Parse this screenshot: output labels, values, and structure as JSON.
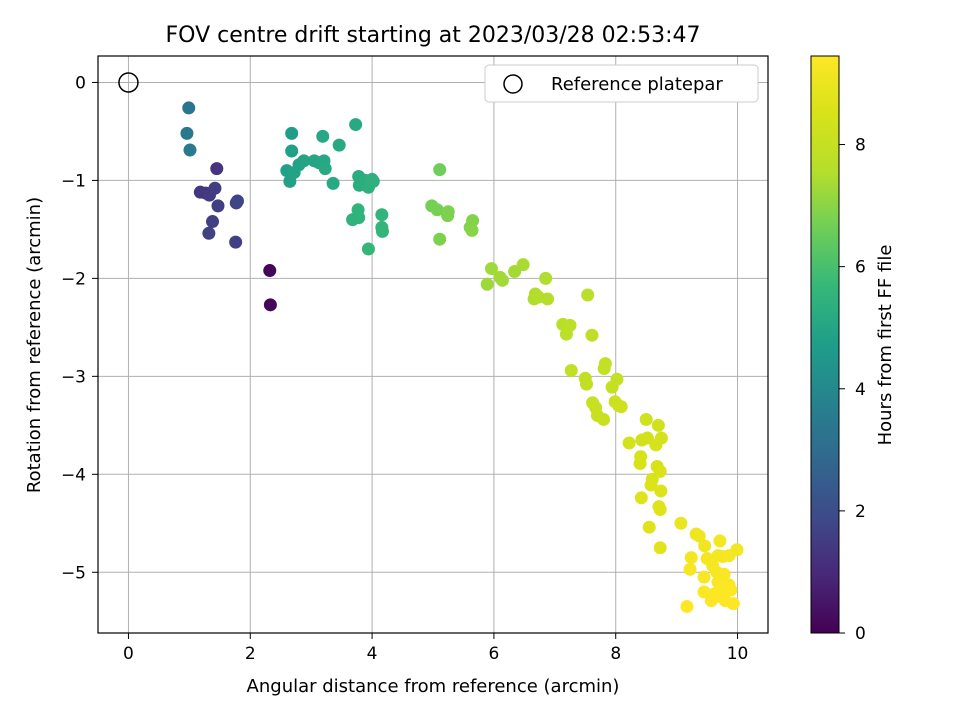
{
  "chart_data": {
    "type": "scatter",
    "title": "FOV centre drift starting at 2023/03/28 02:53:47",
    "xlabel": "Angular distance from reference (arcmin)",
    "ylabel": "Rotation from reference (arcmin)",
    "xlim": [
      -0.5,
      10.5
    ],
    "ylim": [
      -5.62,
      0.27
    ],
    "xticks": [
      0,
      2,
      4,
      6,
      8,
      10
    ],
    "yticks": [
      0,
      -1,
      -2,
      -3,
      -4,
      -5
    ],
    "grid": true,
    "legend": {
      "placement": "top-right",
      "entries": [
        "Reference platepar"
      ]
    },
    "reference_point": {
      "name": "Reference platepar",
      "x": 0,
      "y": 0
    },
    "colorbar": {
      "label": "Hours from first FF file",
      "min": 0,
      "max": 9.45,
      "ticks": [
        0,
        2,
        4,
        6,
        8
      ],
      "colormap": "viridis"
    },
    "points": [
      {
        "x": 2.32,
        "y": -1.92,
        "h": 0.1
      },
      {
        "x": 2.33,
        "y": -2.27,
        "h": 0.15
      },
      {
        "x": 1.45,
        "y": -0.88,
        "h": 1.3
      },
      {
        "x": 1.18,
        "y": -1.12,
        "h": 1.35
      },
      {
        "x": 1.27,
        "y": -1.13,
        "h": 1.4
      },
      {
        "x": 1.33,
        "y": -1.15,
        "h": 1.45
      },
      {
        "x": 1.42,
        "y": -1.08,
        "h": 1.5
      },
      {
        "x": 1.47,
        "y": -1.26,
        "h": 1.55
      },
      {
        "x": 1.38,
        "y": -1.42,
        "h": 1.6
      },
      {
        "x": 1.32,
        "y": -1.54,
        "h": 1.65
      },
      {
        "x": 1.77,
        "y": -1.23,
        "h": 1.7
      },
      {
        "x": 1.79,
        "y": -1.21,
        "h": 1.75
      },
      {
        "x": 1.76,
        "y": -1.63,
        "h": 1.6
      },
      {
        "x": 0.99,
        "y": -0.26,
        "h": 3.3
      },
      {
        "x": 0.96,
        "y": -0.52,
        "h": 3.4
      },
      {
        "x": 1.01,
        "y": -0.69,
        "h": 3.5
      },
      {
        "x": 2.68,
        "y": -0.52,
        "h": 4.7
      },
      {
        "x": 2.68,
        "y": -0.7,
        "h": 4.75
      },
      {
        "x": 2.6,
        "y": -0.9,
        "h": 4.8
      },
      {
        "x": 2.65,
        "y": -1.01,
        "h": 4.85
      },
      {
        "x": 2.72,
        "y": -0.92,
        "h": 4.9
      },
      {
        "x": 2.8,
        "y": -0.84,
        "h": 4.9
      },
      {
        "x": 2.88,
        "y": -0.8,
        "h": 4.95
      },
      {
        "x": 3.05,
        "y": -0.8,
        "h": 5.0
      },
      {
        "x": 3.13,
        "y": -0.82,
        "h": 5.0
      },
      {
        "x": 3.21,
        "y": -0.8,
        "h": 5.05
      },
      {
        "x": 3.19,
        "y": -0.55,
        "h": 5.05
      },
      {
        "x": 3.23,
        "y": -0.88,
        "h": 5.1
      },
      {
        "x": 3.36,
        "y": -1.03,
        "h": 5.1
      },
      {
        "x": 3.46,
        "y": -0.64,
        "h": 5.15
      },
      {
        "x": 3.73,
        "y": -0.43,
        "h": 5.15
      },
      {
        "x": 3.78,
        "y": -0.96,
        "h": 5.2
      },
      {
        "x": 3.79,
        "y": -1.05,
        "h": 5.3
      },
      {
        "x": 3.89,
        "y": -1.0,
        "h": 5.3
      },
      {
        "x": 3.94,
        "y": -1.07,
        "h": 5.35
      },
      {
        "x": 4.02,
        "y": -1.01,
        "h": 5.4
      },
      {
        "x": 4.0,
        "y": -0.99,
        "h": 5.4
      },
      {
        "x": 3.68,
        "y": -1.4,
        "h": 5.45
      },
      {
        "x": 3.78,
        "y": -1.38,
        "h": 5.5
      },
      {
        "x": 3.77,
        "y": -1.3,
        "h": 5.5
      },
      {
        "x": 4.16,
        "y": -1.35,
        "h": 5.55
      },
      {
        "x": 4.16,
        "y": -1.48,
        "h": 5.6
      },
      {
        "x": 4.17,
        "y": -1.52,
        "h": 5.6
      },
      {
        "x": 3.94,
        "y": -1.7,
        "h": 5.65
      },
      {
        "x": 5.11,
        "y": -0.89,
        "h": 6.6
      },
      {
        "x": 4.98,
        "y": -1.26,
        "h": 6.7
      },
      {
        "x": 5.07,
        "y": -1.3,
        "h": 6.75
      },
      {
        "x": 5.25,
        "y": -1.32,
        "h": 6.8
      },
      {
        "x": 5.24,
        "y": -1.36,
        "h": 6.8
      },
      {
        "x": 5.65,
        "y": -1.41,
        "h": 6.9
      },
      {
        "x": 5.61,
        "y": -1.48,
        "h": 6.9
      },
      {
        "x": 5.64,
        "y": -1.51,
        "h": 6.95
      },
      {
        "x": 5.11,
        "y": -1.6,
        "h": 6.8
      },
      {
        "x": 6.48,
        "y": -1.86,
        "h": 7.4
      },
      {
        "x": 6.34,
        "y": -1.93,
        "h": 7.35
      },
      {
        "x": 5.96,
        "y": -1.9,
        "h": 7.3
      },
      {
        "x": 6.1,
        "y": -1.99,
        "h": 7.3
      },
      {
        "x": 6.14,
        "y": -2.02,
        "h": 7.3
      },
      {
        "x": 5.89,
        "y": -2.06,
        "h": 7.25
      },
      {
        "x": 6.85,
        "y": -2.0,
        "h": 7.5
      },
      {
        "x": 6.68,
        "y": -2.16,
        "h": 7.5
      },
      {
        "x": 6.66,
        "y": -2.21,
        "h": 7.5
      },
      {
        "x": 6.73,
        "y": -2.19,
        "h": 7.55
      },
      {
        "x": 6.88,
        "y": -2.21,
        "h": 7.55
      },
      {
        "x": 7.54,
        "y": -2.17,
        "h": 7.7
      },
      {
        "x": 7.13,
        "y": -2.47,
        "h": 7.7
      },
      {
        "x": 7.25,
        "y": -2.48,
        "h": 7.75
      },
      {
        "x": 7.19,
        "y": -2.57,
        "h": 7.75
      },
      {
        "x": 7.61,
        "y": -2.58,
        "h": 7.8
      },
      {
        "x": 7.27,
        "y": -2.94,
        "h": 7.85
      },
      {
        "x": 7.5,
        "y": -3.02,
        "h": 7.9
      },
      {
        "x": 7.52,
        "y": -3.08,
        "h": 7.9
      },
      {
        "x": 7.83,
        "y": -2.87,
        "h": 7.95
      },
      {
        "x": 7.81,
        "y": -2.92,
        "h": 7.95
      },
      {
        "x": 8.02,
        "y": -3.03,
        "h": 8.0
      },
      {
        "x": 7.94,
        "y": -3.11,
        "h": 8.0
      },
      {
        "x": 7.62,
        "y": -3.27,
        "h": 8.05
      },
      {
        "x": 7.67,
        "y": -3.32,
        "h": 8.05
      },
      {
        "x": 7.7,
        "y": -3.4,
        "h": 8.1
      },
      {
        "x": 7.8,
        "y": -3.44,
        "h": 8.1
      },
      {
        "x": 7.99,
        "y": -3.26,
        "h": 8.15
      },
      {
        "x": 8.05,
        "y": -3.3,
        "h": 8.15
      },
      {
        "x": 8.09,
        "y": -3.31,
        "h": 8.2
      },
      {
        "x": 8.5,
        "y": -3.44,
        "h": 8.3
      },
      {
        "x": 8.7,
        "y": -3.5,
        "h": 8.3
      },
      {
        "x": 8.52,
        "y": -3.63,
        "h": 8.35
      },
      {
        "x": 8.43,
        "y": -3.65,
        "h": 8.35
      },
      {
        "x": 8.22,
        "y": -3.68,
        "h": 8.4
      },
      {
        "x": 8.75,
        "y": -3.63,
        "h": 8.4
      },
      {
        "x": 8.66,
        "y": -3.7,
        "h": 8.45
      },
      {
        "x": 8.41,
        "y": -3.82,
        "h": 8.45
      },
      {
        "x": 8.4,
        "y": -3.89,
        "h": 8.5
      },
      {
        "x": 8.68,
        "y": -3.92,
        "h": 8.5
      },
      {
        "x": 8.73,
        "y": -3.97,
        "h": 8.55
      },
      {
        "x": 8.6,
        "y": -4.05,
        "h": 8.55
      },
      {
        "x": 8.58,
        "y": -4.11,
        "h": 8.6
      },
      {
        "x": 8.74,
        "y": -4.17,
        "h": 8.6
      },
      {
        "x": 8.42,
        "y": -4.24,
        "h": 8.65
      },
      {
        "x": 8.71,
        "y": -4.33,
        "h": 8.65
      },
      {
        "x": 8.73,
        "y": -4.36,
        "h": 8.7
      },
      {
        "x": 8.55,
        "y": -4.54,
        "h": 8.7
      },
      {
        "x": 8.73,
        "y": -4.75,
        "h": 8.75
      },
      {
        "x": 9.07,
        "y": -4.5,
        "h": 9.0
      },
      {
        "x": 9.32,
        "y": -4.61,
        "h": 9.1
      },
      {
        "x": 9.37,
        "y": -4.63,
        "h": 9.1
      },
      {
        "x": 9.46,
        "y": -4.73,
        "h": 9.15
      },
      {
        "x": 9.71,
        "y": -4.68,
        "h": 9.2
      },
      {
        "x": 9.99,
        "y": -4.77,
        "h": 9.2
      },
      {
        "x": 9.24,
        "y": -4.85,
        "h": 9.2
      },
      {
        "x": 9.68,
        "y": -4.83,
        "h": 9.25
      },
      {
        "x": 9.76,
        "y": -4.84,
        "h": 9.25
      },
      {
        "x": 9.5,
        "y": -4.86,
        "h": 9.25
      },
      {
        "x": 9.86,
        "y": -4.83,
        "h": 9.3
      },
      {
        "x": 9.59,
        "y": -4.93,
        "h": 9.3
      },
      {
        "x": 9.22,
        "y": -4.97,
        "h": 9.3
      },
      {
        "x": 9.66,
        "y": -5.0,
        "h": 9.3
      },
      {
        "x": 9.78,
        "y": -5.02,
        "h": 9.35
      },
      {
        "x": 9.45,
        "y": -5.05,
        "h": 9.35
      },
      {
        "x": 9.68,
        "y": -5.1,
        "h": 9.35
      },
      {
        "x": 9.86,
        "y": -5.13,
        "h": 9.35
      },
      {
        "x": 9.76,
        "y": -5.15,
        "h": 9.4
      },
      {
        "x": 9.89,
        "y": -5.18,
        "h": 9.4
      },
      {
        "x": 9.45,
        "y": -5.2,
        "h": 9.4
      },
      {
        "x": 9.62,
        "y": -5.22,
        "h": 9.4
      },
      {
        "x": 9.72,
        "y": -5.25,
        "h": 9.4
      },
      {
        "x": 9.57,
        "y": -5.29,
        "h": 9.45
      },
      {
        "x": 9.8,
        "y": -5.29,
        "h": 9.45
      },
      {
        "x": 9.93,
        "y": -5.32,
        "h": 9.45
      },
      {
        "x": 9.17,
        "y": -5.35,
        "h": 9.45
      }
    ]
  }
}
